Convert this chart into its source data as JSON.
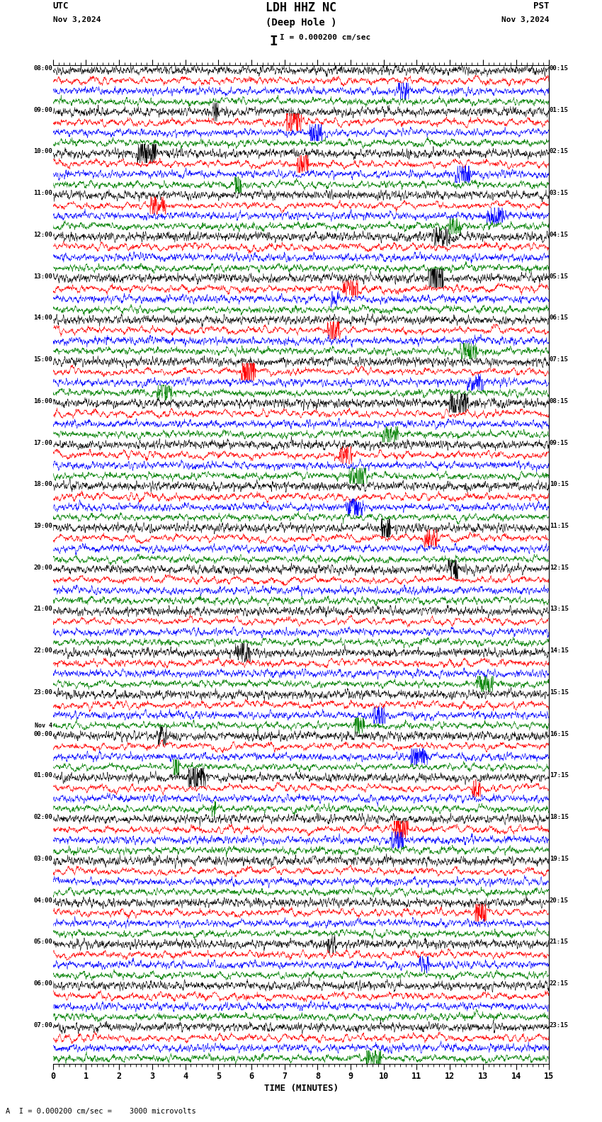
{
  "title_line1": "LDH HHZ NC",
  "title_line2": "(Deep Hole )",
  "scale_text": "I = 0.000200 cm/sec",
  "utc_label": "UTC",
  "utc_date": "Nov 3,2024",
  "pst_label": "PST",
  "pst_date": "Nov 3,2024",
  "xlabel": "TIME (MINUTES)",
  "bottom_annotation": "A  I = 0.000200 cm/sec =    3000 microvolts",
  "xmin": 0,
  "xmax": 15,
  "trace_colors": [
    "black",
    "red",
    "blue",
    "green"
  ],
  "background": "white",
  "left_labels": [
    "08:00",
    "09:00",
    "10:00",
    "11:00",
    "12:00",
    "13:00",
    "14:00",
    "15:00",
    "16:00",
    "17:00",
    "18:00",
    "19:00",
    "20:00",
    "21:00",
    "22:00",
    "23:00",
    "Nov 4\n00:00",
    "01:00",
    "02:00",
    "03:00",
    "04:00",
    "05:00",
    "06:00",
    "07:00"
  ],
  "right_labels": [
    "00:15",
    "01:15",
    "02:15",
    "03:15",
    "04:15",
    "05:15",
    "06:15",
    "07:15",
    "08:15",
    "09:15",
    "10:15",
    "11:15",
    "12:15",
    "13:15",
    "14:15",
    "15:15",
    "16:15",
    "17:15",
    "18:15",
    "19:15",
    "20:15",
    "21:15",
    "22:15",
    "23:15"
  ],
  "num_rows": 24,
  "traces_per_row": 4,
  "N": 2000,
  "amp_black": 0.45,
  "amp_red": 0.42,
  "amp_blue": 0.4,
  "amp_green": 0.38,
  "fig_width": 8.5,
  "fig_height": 15.84,
  "lm": 0.088,
  "rm": 0.088,
  "tm": 0.058,
  "bm": 0.052
}
